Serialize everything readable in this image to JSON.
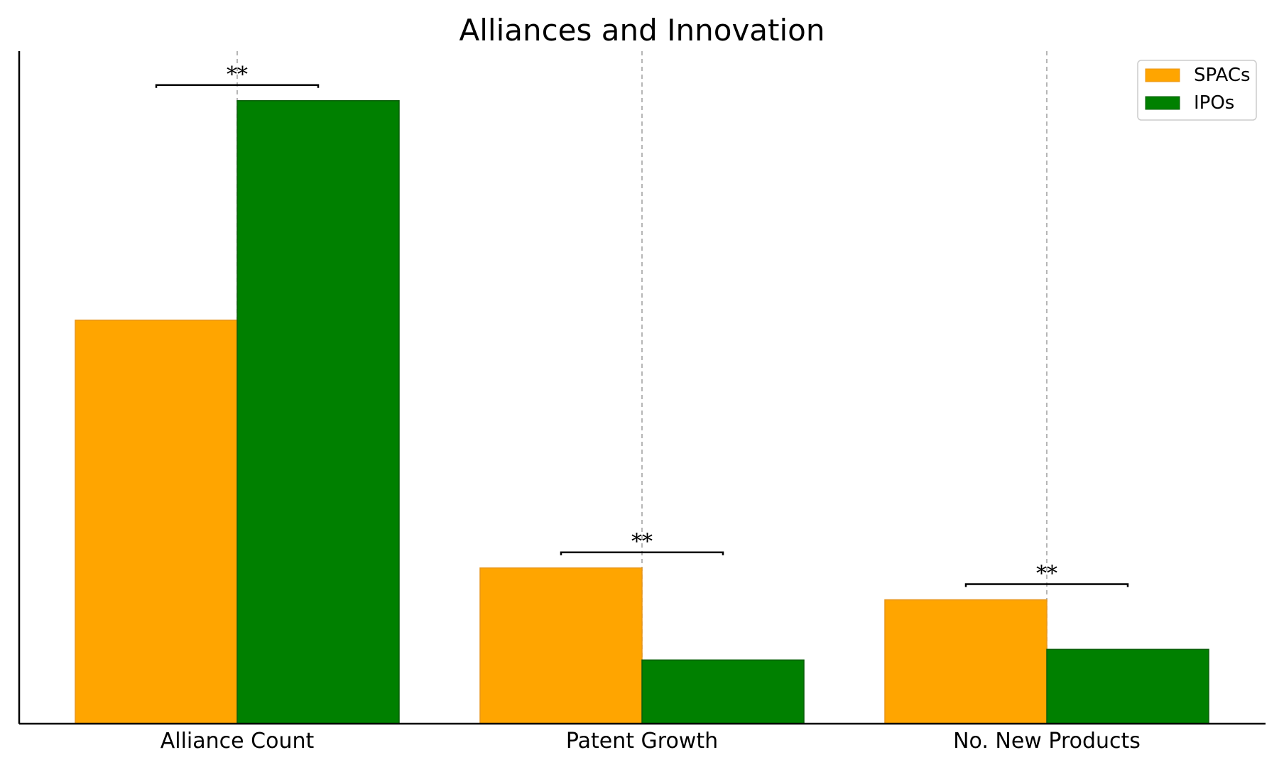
{
  "chart_data": {
    "type": "bar",
    "title": "Alliances and Innovation",
    "xlabel": "",
    "ylabel": "",
    "categories": [
      "Alliance Count",
      "Patent Growth",
      "No. New Products"
    ],
    "series": [
      {
        "name": "SPACs",
        "color": "#FFA500",
        "edge": "#E8961A",
        "values": [
          5.7,
          2.2,
          1.75
        ]
      },
      {
        "name": "IPOs",
        "color": "#008000",
        "edge": "#0A5F0A",
        "values": [
          8.8,
          0.9,
          1.05
        ]
      }
    ],
    "significance": [
      "**",
      "**",
      "**"
    ],
    "ylim": [
      0,
      9.5
    ],
    "y_ticks_shown": false,
    "grid": "vertical dashed at category centers",
    "legend": "top-right"
  }
}
